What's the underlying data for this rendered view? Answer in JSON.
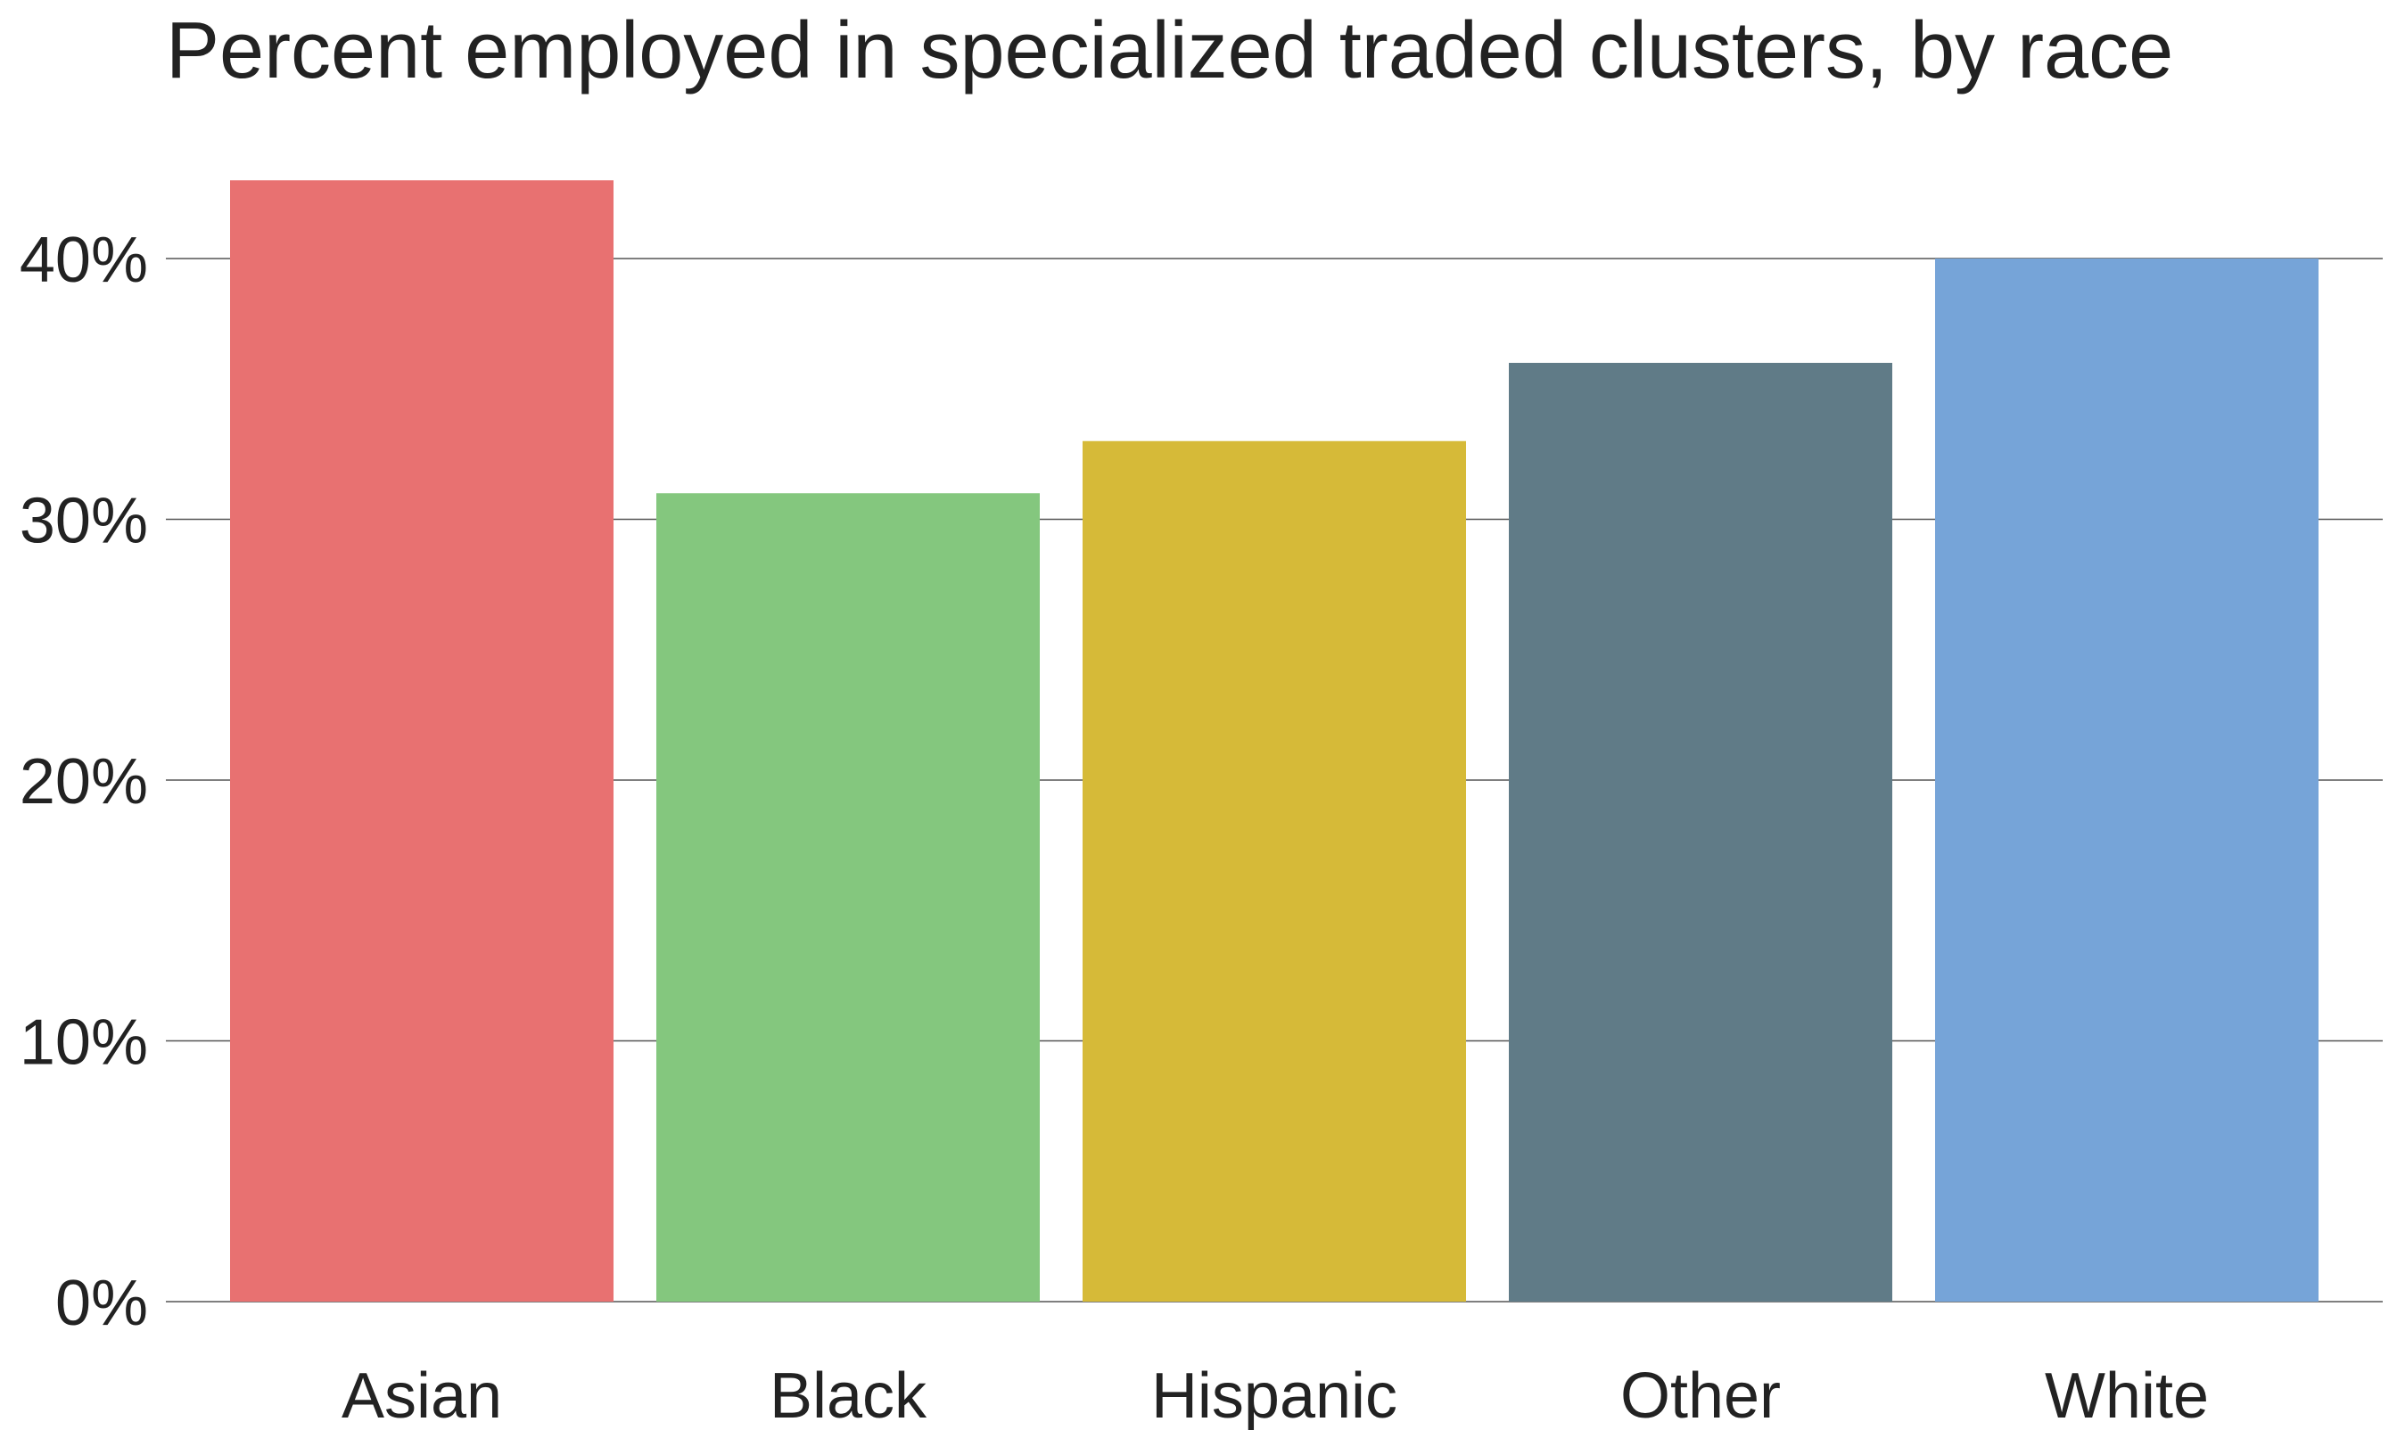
{
  "chart_data": {
    "type": "bar",
    "title": "Percent employed in specialized traded clusters, by race",
    "xlabel": "",
    "ylabel": "",
    "categories": [
      "Asian",
      "Black",
      "Hispanic",
      "Other",
      "White"
    ],
    "values": [
      43,
      31,
      33,
      36,
      40
    ],
    "colors": [
      "#E87171",
      "#84C77E",
      "#D6BA38",
      "#607B87",
      "#76A4D8"
    ],
    "ylim": [
      0,
      44
    ],
    "yticks": [
      0,
      10,
      20,
      30,
      40
    ],
    "ytick_labels": [
      "0%",
      "10%",
      "20%",
      "30%",
      "40%"
    ],
    "grid": true,
    "legend": "none"
  }
}
